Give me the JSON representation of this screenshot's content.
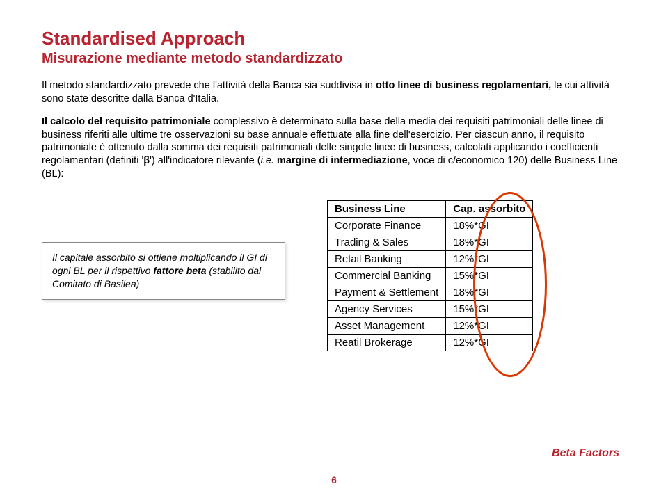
{
  "title": "Standardised Approach",
  "subtitle": "Misurazione mediante metodo standardizzato",
  "para1_prefix": "Il metodo standardizzato prevede che l'attività della Banca sia suddivisa in ",
  "para1_bold": "otto linee di business regolamentari,",
  "para1_suffix": " le cui attività sono state descritte dalla Banca d'Italia.",
  "para2_bold": "Il calcolo del requisito patrimoniale ",
  "para2_body": "complessivo è determinato sulla base della media dei requisiti patrimoniali delle linee di business riferiti alle ultime tre osservazioni su base annuale effettuate alla fine dell'esercizio. Per ciascun anno, il requisito patrimoniale è ottenuto dalla somma dei requisiti patrimoniali delle singole linee di business, calcolati applicando i coefficienti regolamentari (definiti '",
  "para2_beta": "β",
  "para2_body2": "') all'indicatore rilevante (",
  "para2_ital": "i.e.",
  "para2_bold2": " margine di intermediazione",
  "para2_suffix": ", voce di c/economico 120) delle Business Line (BL):",
  "leftbox_pre": "Il capitale assorbito si ottiene moltiplicando il GI di ogni BL per il rispettivo ",
  "leftbox_bold": "fattore beta",
  "leftbox_post": " (stabilito dal Comitato di Basilea)",
  "table": {
    "head_bl": "Business Line",
    "head_cap": "Cap. assorbito",
    "rows": [
      {
        "bl": "Corporate Finance",
        "cap": "18%*GI"
      },
      {
        "bl": "Trading & Sales",
        "cap": "18%*GI"
      },
      {
        "bl": "Retail Banking",
        "cap": "12%*GI"
      },
      {
        "bl": "Commercial Banking",
        "cap": "15%*GI"
      },
      {
        "bl": "Payment & Settlement",
        "cap": "18%*GI"
      },
      {
        "bl": "Agency Services",
        "cap": "15%*GI"
      },
      {
        "bl": "Asset Management",
        "cap": "12%*GI"
      },
      {
        "bl": "Reatil Brokerage",
        "cap": "12%*GI"
      }
    ]
  },
  "beta_label": "Beta Factors",
  "pagenum": "6",
  "colors": {
    "accent": "#b8232f",
    "ellipse": "#d93800"
  }
}
